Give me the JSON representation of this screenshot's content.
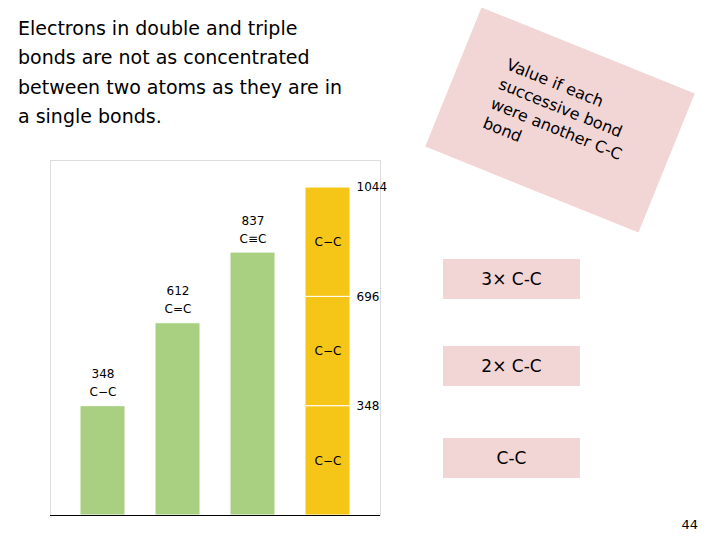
{
  "chart_data": {
    "type": "bar",
    "title": "Electrons in double and triple\nbonds are not as concentrated\nbetween two atoms as they are in\na single bonds.",
    "categories": [
      "C−C",
      "C=C",
      "C≡C",
      null
    ],
    "series": [
      {
        "color": "#a8d080",
        "values": [
          348,
          612,
          837,
          null
        ],
        "data_labels": true
      },
      {
        "name": "C−C",
        "color": "#f5c518",
        "values": [
          null,
          null,
          null,
          348
        ]
      },
      {
        "name": "C−C",
        "color": "#f5c518",
        "values": [
          null,
          null,
          null,
          348
        ]
      },
      {
        "name": "C−C",
        "color": "#f5c518",
        "values": [
          null,
          null,
          null,
          348
        ]
      }
    ],
    "stacked": true,
    "ylim": [
      0,
      1130
    ],
    "tick_labels": false,
    "level_labels": [
      348,
      696,
      1044
    ],
    "annotations": [
      {
        "text": "Value if each\nsuccessive bond\nwere another C-C\nbond",
        "color": "#f2d5d5"
      },
      {
        "text": "3× C-C",
        "color": "#f2d5d5"
      },
      {
        "text": "2× C-C",
        "color": "#f2d5d5"
      },
      {
        "text": "C-C",
        "color": "#f2d5d5"
      },
      {
        "text": "44"
      }
    ]
  }
}
